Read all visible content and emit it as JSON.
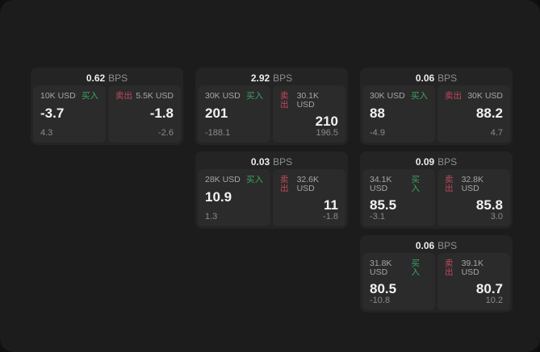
{
  "labels": {
    "bps_unit": "BPS",
    "buy": "买入",
    "sell": "卖出"
  },
  "colors": {
    "buy": "#3da35f",
    "sell": "#c2485d",
    "window_bg": "#1b1c1b",
    "card_bg": "#242424",
    "panel_bg": "#2b2b2b"
  },
  "cards": [
    {
      "col": 1,
      "row": 1,
      "bps": "0.62",
      "buy": {
        "amount": "10K USD",
        "price": "-3.7",
        "delta": "4.3"
      },
      "sell": {
        "amount": "5.5K USD",
        "price": "-1.8",
        "delta": "-2.6"
      }
    },
    {
      "col": 2,
      "row": 1,
      "bps": "2.92",
      "buy": {
        "amount": "30K USD",
        "price": "201",
        "delta": "-188.1"
      },
      "sell": {
        "amount": "30.1K USD",
        "price": "210",
        "delta": "196.5"
      }
    },
    {
      "col": 2,
      "row": 2,
      "bps": "0.03",
      "buy": {
        "amount": "28K USD",
        "price": "10.9",
        "delta": "1.3"
      },
      "sell": {
        "amount": "32.6K USD",
        "price": "11",
        "delta": "-1.8"
      }
    },
    {
      "col": 3,
      "row": 1,
      "bps": "0.06",
      "buy": {
        "amount": "30K USD",
        "price": "88",
        "delta": "-4.9"
      },
      "sell": {
        "amount": "30K USD",
        "price": "88.2",
        "delta": "4.7"
      }
    },
    {
      "col": 3,
      "row": 2,
      "bps": "0.09",
      "buy": {
        "amount": "34.1K USD",
        "price": "85.5",
        "delta": "-3.1"
      },
      "sell": {
        "amount": "32.8K USD",
        "price": "85.8",
        "delta": "3.0"
      }
    },
    {
      "col": 3,
      "row": 3,
      "bps": "0.06",
      "buy": {
        "amount": "31.8K USD",
        "price": "80.5",
        "delta": "-10.8"
      },
      "sell": {
        "amount": "39.1K USD",
        "price": "80.7",
        "delta": "10.2"
      }
    }
  ]
}
